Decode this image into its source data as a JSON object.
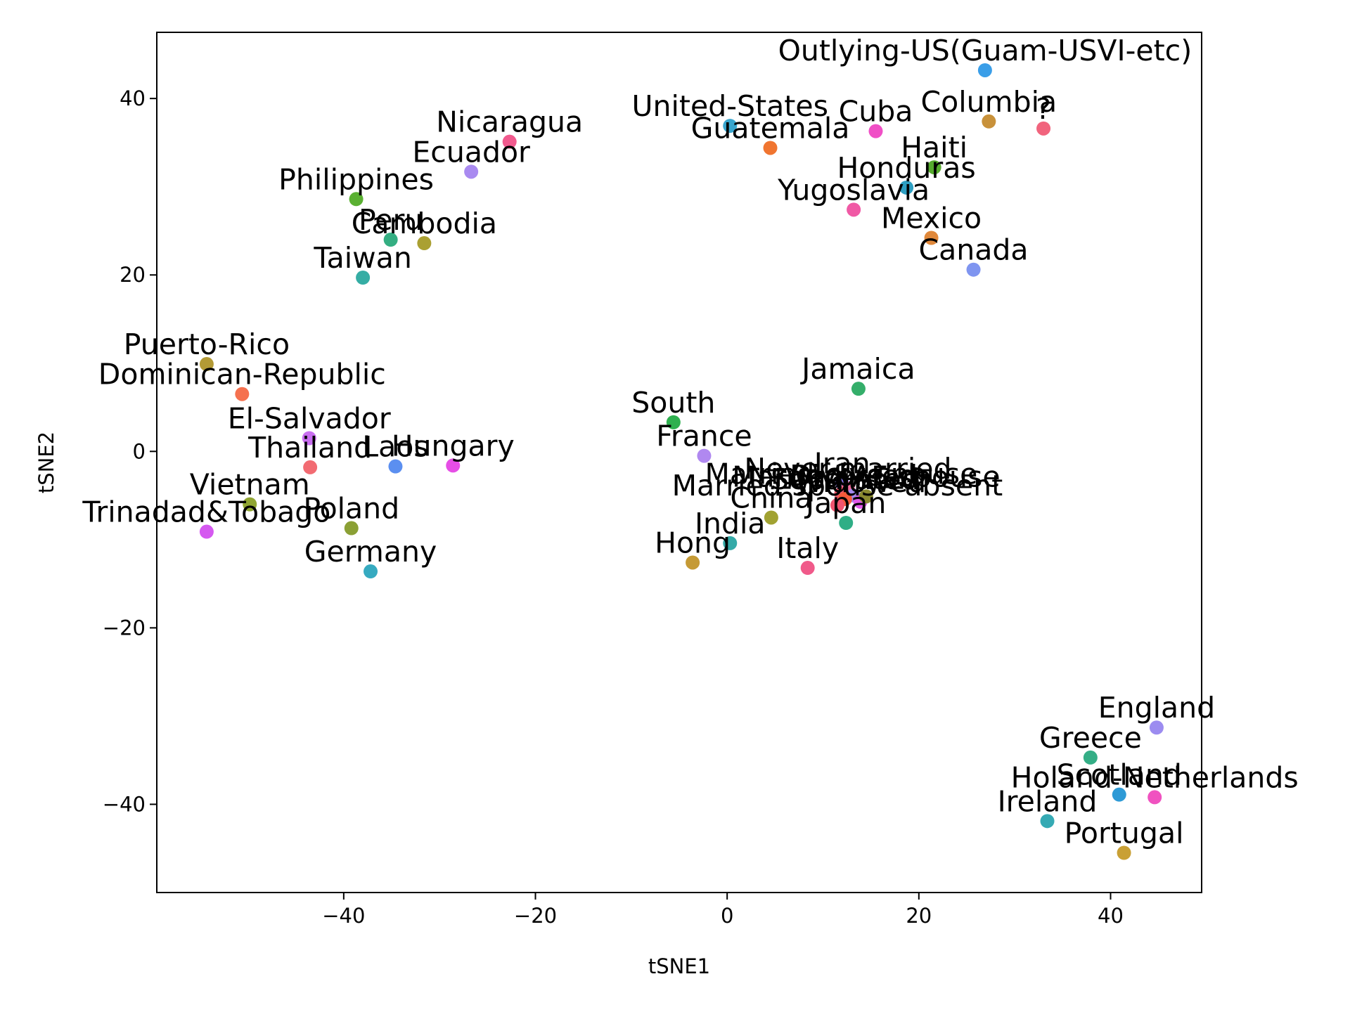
{
  "chart_data": {
    "type": "scatter",
    "title": "",
    "xlabel": "tSNE1",
    "ylabel": "tSNE2",
    "xlim": [
      -59.5,
      49.5
    ],
    "ylim": [
      -50,
      47.5
    ],
    "xticks": [
      -40,
      -20,
      0,
      20,
      40
    ],
    "yticks": [
      -40,
      -20,
      0,
      20,
      40
    ],
    "xtick_labels": [
      "−40",
      "−20",
      "0",
      "20",
      "40"
    ],
    "ytick_labels": [
      "−40",
      "−20",
      "0",
      "20",
      "40"
    ],
    "grid": false,
    "points": [
      {
        "label": "Outlying-US(Guam-USVI-etc)",
        "x": 26.9,
        "y": 43.2,
        "color": "#3a9ee8"
      },
      {
        "label": "United-States",
        "x": 0.3,
        "y": 36.9,
        "color": "#39a6cf"
      },
      {
        "label": "Cuba",
        "x": 15.5,
        "y": 36.3,
        "color": "#f04fc6"
      },
      {
        "label": "Columbia",
        "x": 27.3,
        "y": 37.4,
        "color": "#c8913a"
      },
      {
        "label": "?",
        "x": 33.0,
        "y": 36.6,
        "color": "#f1647d"
      },
      {
        "label": "Guatemala",
        "x": 4.5,
        "y": 34.4,
        "color": "#f07530"
      },
      {
        "label": "Nicaragua",
        "x": -22.7,
        "y": 35.1,
        "color": "#f15a8e"
      },
      {
        "label": "Ecuador",
        "x": -26.7,
        "y": 31.7,
        "color": "#a98af0"
      },
      {
        "label": "Haiti",
        "x": 21.6,
        "y": 32.2,
        "color": "#56ab2e"
      },
      {
        "label": "Honduras",
        "x": 18.7,
        "y": 29.9,
        "color": "#2e9fc2"
      },
      {
        "label": "Philippines",
        "x": -38.7,
        "y": 28.6,
        "color": "#5ab032"
      },
      {
        "label": "Yugoslavia",
        "x": 13.2,
        "y": 27.4,
        "color": "#f059a5"
      },
      {
        "label": "Peru",
        "x": -35.1,
        "y": 24.0,
        "color": "#34ae82"
      },
      {
        "label": "Cambodia",
        "x": -31.6,
        "y": 23.6,
        "color": "#aaa032"
      },
      {
        "label": "Mexico",
        "x": 21.3,
        "y": 24.2,
        "color": "#e0883a"
      },
      {
        "label": "Canada",
        "x": 25.7,
        "y": 20.6,
        "color": "#7f95f0"
      },
      {
        "label": "Taiwan",
        "x": -38.0,
        "y": 19.7,
        "color": "#35ada4"
      },
      {
        "label": "Puerto-Rico",
        "x": -54.3,
        "y": 9.9,
        "color": "#b39a35"
      },
      {
        "label": "Dominican-Republic",
        "x": -50.6,
        "y": 6.5,
        "color": "#f5714f"
      },
      {
        "label": "Jamaica",
        "x": 13.7,
        "y": 7.1,
        "color": "#34ae6a"
      },
      {
        "label": "South",
        "x": -5.6,
        "y": 3.3,
        "color": "#2eb04f"
      },
      {
        "label": "El-Salvador",
        "x": -43.6,
        "y": 1.5,
        "color": "#c96ef0"
      },
      {
        "label": "France",
        "x": -2.4,
        "y": -0.5,
        "color": "#b088f0"
      },
      {
        "label": "Thailand",
        "x": -43.5,
        "y": -1.8,
        "color": "#f26b72"
      },
      {
        "label": "Laos",
        "x": -34.6,
        "y": -1.7,
        "color": "#5b8ff0"
      },
      {
        "label": "Hungary",
        "x": -28.6,
        "y": -1.6,
        "color": "#e64ee6"
      },
      {
        "label": "Iran",
        "x": 12.0,
        "y": -3.6,
        "color": "#8a78f0"
      },
      {
        "label": "Never-married",
        "x": 12.6,
        "y": -4.2,
        "color": "#f06a9a"
      },
      {
        "label": "Married-civ-spouse",
        "x": 11.9,
        "y": -4.8,
        "color": "#f05a6a"
      },
      {
        "label": "Divorced",
        "x": 13.2,
        "y": -5.0,
        "color": "#a58af0"
      },
      {
        "label": "Separated",
        "x": 12.3,
        "y": -5.4,
        "color": "#f55a3a"
      },
      {
        "label": "Widowed",
        "x": 13.9,
        "y": -5.7,
        "color": "#e05ae8"
      },
      {
        "label": "Married-AF-spouse",
        "x": 14.5,
        "y": -5.1,
        "color": "#8a8a30"
      },
      {
        "label": "Married-spouse-absent",
        "x": 11.5,
        "y": -6.1,
        "color": "#f05570"
      },
      {
        "label": "China",
        "x": 4.6,
        "y": -7.5,
        "color": "#a1a232"
      },
      {
        "label": "Japan",
        "x": 12.4,
        "y": -8.1,
        "color": "#2fae86"
      },
      {
        "label": "Vietnam",
        "x": -49.8,
        "y": -6.0,
        "color": "#90a532"
      },
      {
        "label": "Poland",
        "x": -39.2,
        "y": -8.7,
        "color": "#8ba035"
      },
      {
        "label": "Trinadad&Tobago",
        "x": -54.3,
        "y": -9.1,
        "color": "#d559f0"
      },
      {
        "label": "India",
        "x": 0.3,
        "y": -10.4,
        "color": "#34aaa8"
      },
      {
        "label": "Hong",
        "x": -3.6,
        "y": -12.6,
        "color": "#c59a35"
      },
      {
        "label": "Italy",
        "x": 8.4,
        "y": -13.2,
        "color": "#f05a8a"
      },
      {
        "label": "Germany",
        "x": -37.2,
        "y": -13.6,
        "color": "#36aac0"
      },
      {
        "label": "England",
        "x": 44.8,
        "y": -31.3,
        "color": "#9c8cf0"
      },
      {
        "label": "Greece",
        "x": 37.9,
        "y": -34.7,
        "color": "#34ae86"
      },
      {
        "label": "Scotland",
        "x": 40.9,
        "y": -38.9,
        "color": "#2e9ad6"
      },
      {
        "label": "Holand-Netherlands",
        "x": 44.6,
        "y": -39.2,
        "color": "#f052c0"
      },
      {
        "label": "Ireland",
        "x": 33.4,
        "y": -41.9,
        "color": "#35aab4"
      },
      {
        "label": "Portugal",
        "x": 41.4,
        "y": -45.5,
        "color": "#c9a035"
      }
    ]
  }
}
